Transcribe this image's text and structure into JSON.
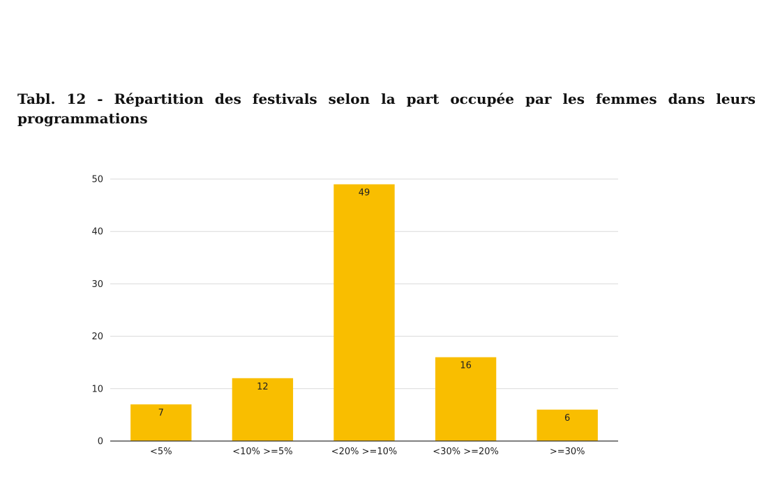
{
  "caption": "Tabl. 12 - Répartition des festivals selon la part occupée par les femmes dans leurs programmations",
  "chart_data": {
    "type": "bar",
    "categories": [
      "<5%",
      "<10% >=5%",
      "<20% >=10%",
      "<30% >=20%",
      ">=30%"
    ],
    "values": [
      7,
      12,
      49,
      16,
      6
    ],
    "data_labels": [
      "7",
      "12",
      "49",
      "16",
      "6"
    ],
    "ylim": [
      0,
      50
    ],
    "yticks": [
      0,
      10,
      20,
      30,
      40,
      50
    ],
    "grid": true,
    "legend": "none",
    "bar_color": "#F9BE00",
    "grid_color": "#D9D9D9",
    "axis_color": "#333333"
  }
}
